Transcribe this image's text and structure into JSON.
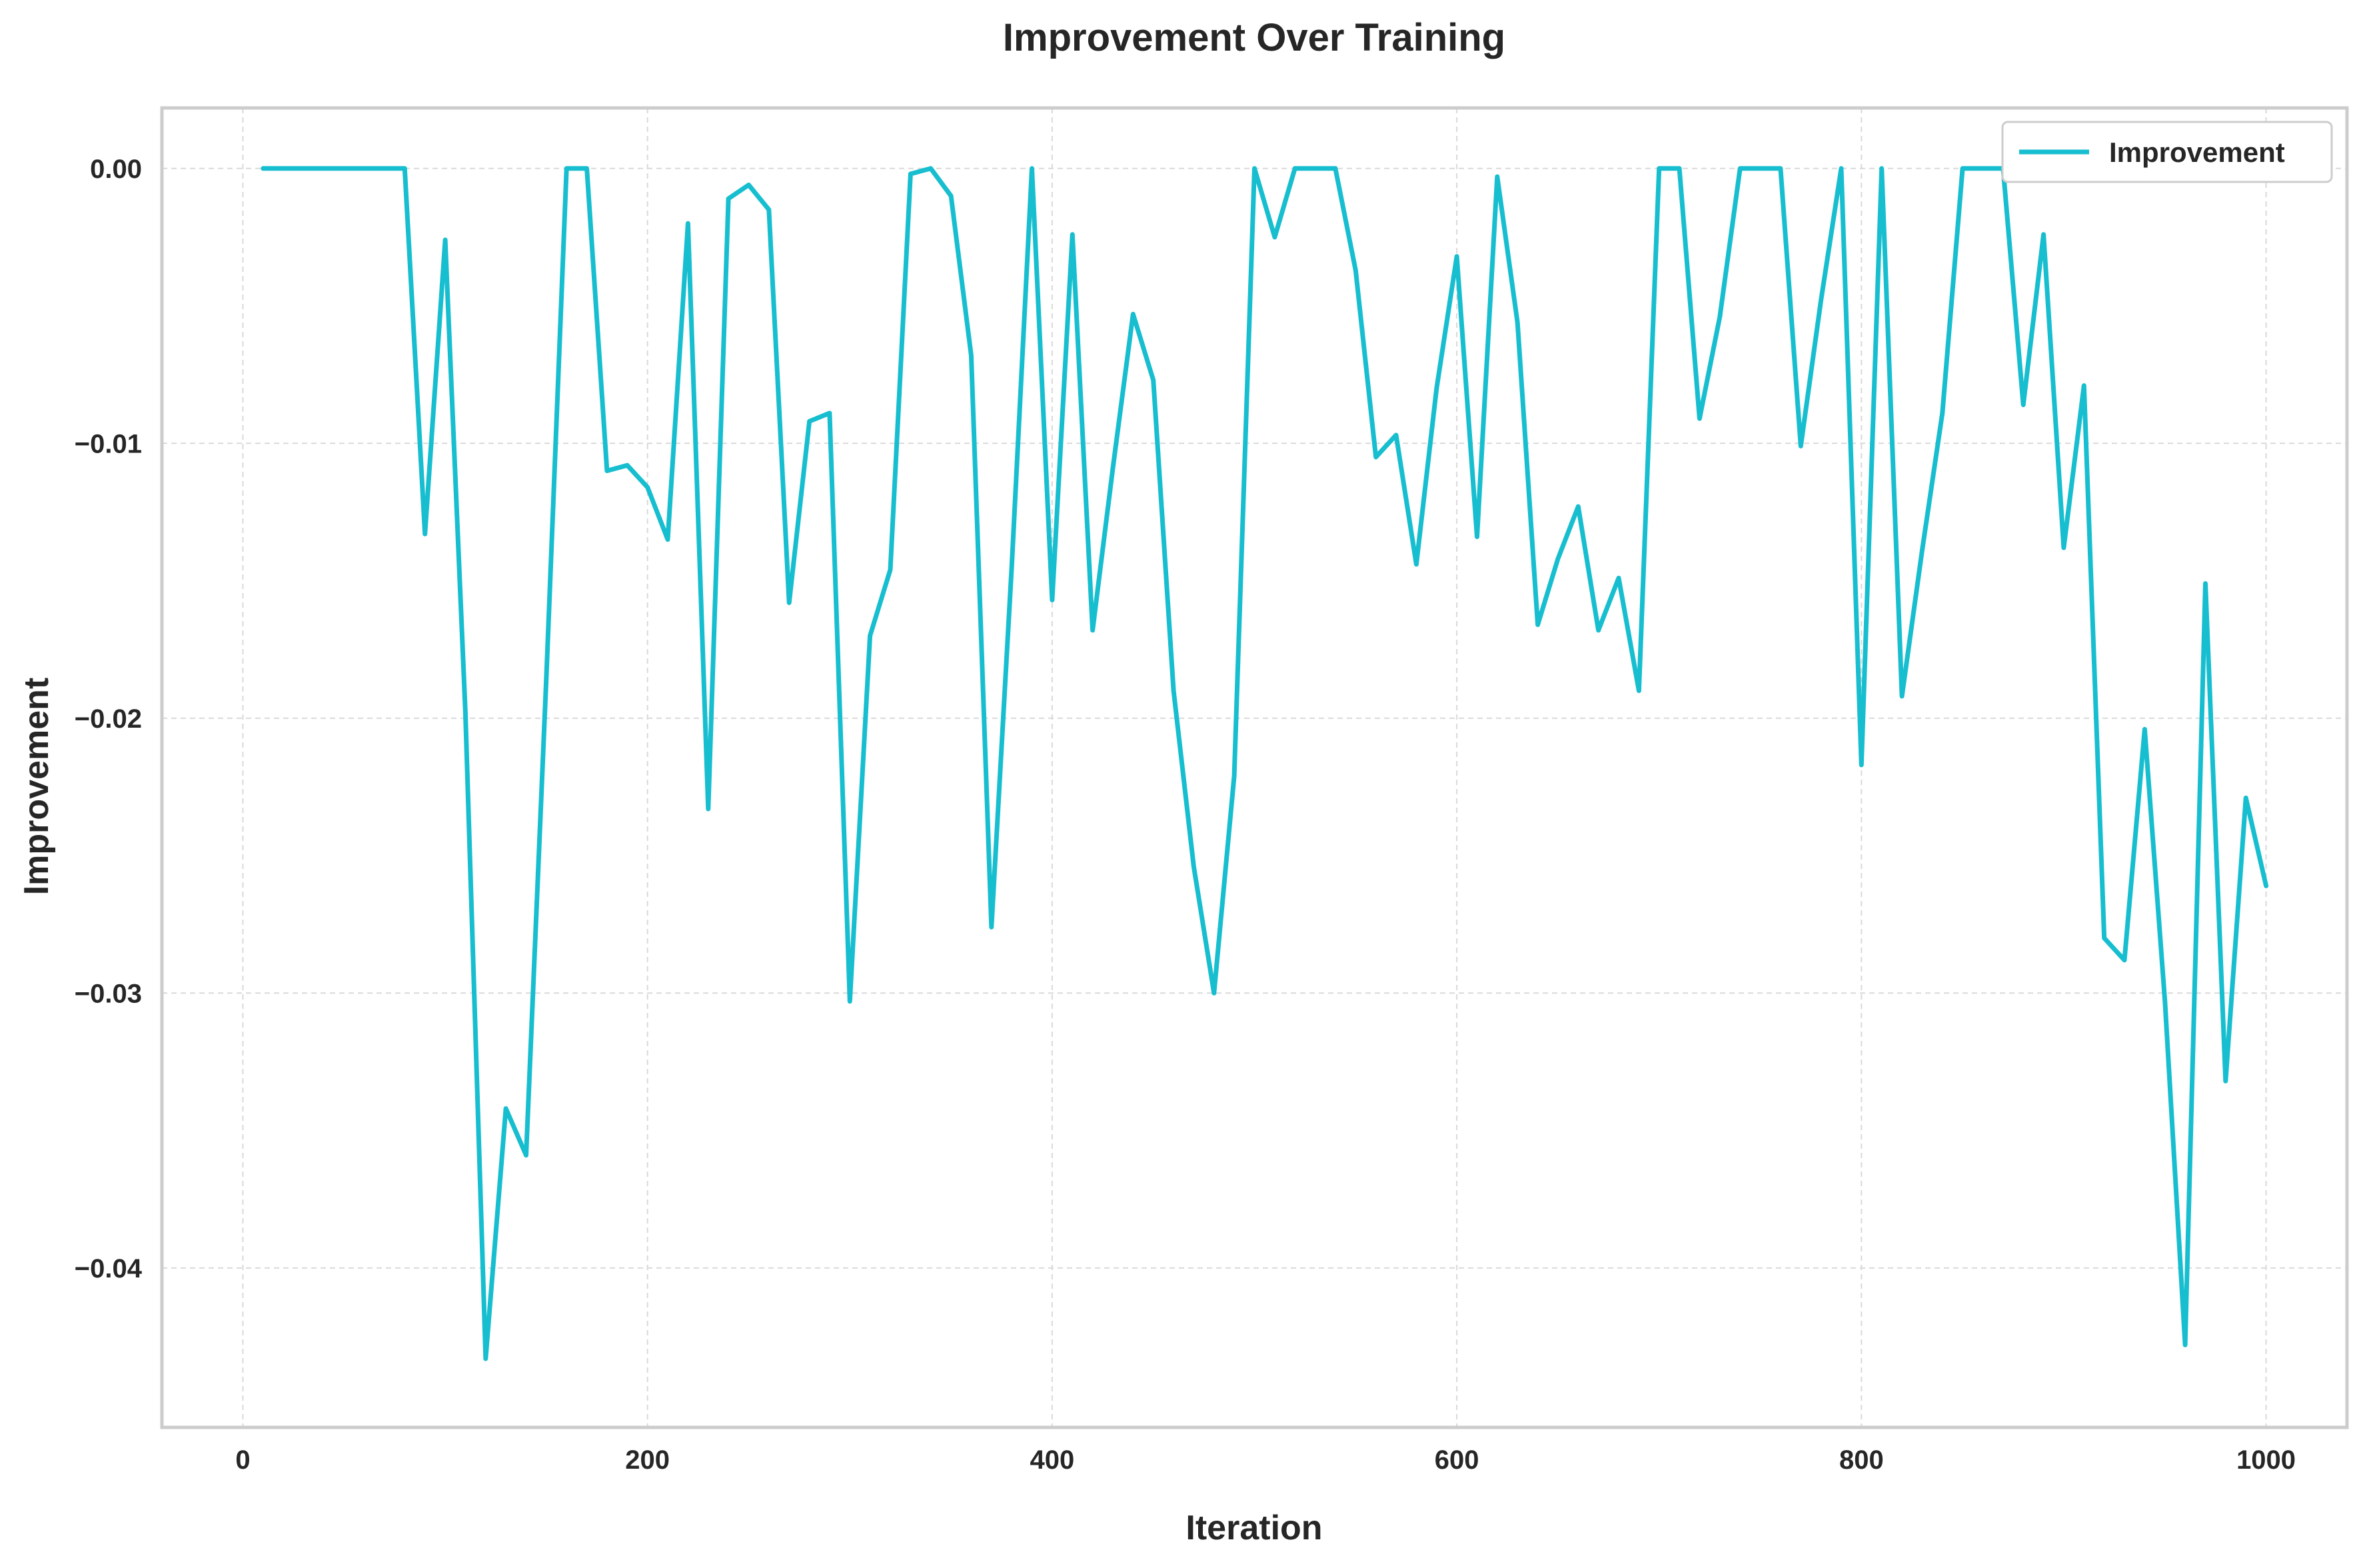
{
  "chart_data": {
    "type": "line",
    "title": "Improvement Over Training",
    "xlabel": "Iteration",
    "ylabel": "Improvement",
    "xlim": [
      -40,
      1040
    ],
    "ylim": [
      -0.0458,
      0.0022
    ],
    "xticks": [
      0,
      200,
      400,
      600,
      800,
      1000
    ],
    "xtick_labels": [
      "0",
      "200",
      "400",
      "600",
      "800",
      "1000"
    ],
    "yticks": [
      0,
      -0.01,
      -0.02,
      -0.03,
      -0.04
    ],
    "ytick_labels": [
      "0.00",
      "−0.01",
      "−0.02",
      "−0.03",
      "−0.04"
    ],
    "grid": true,
    "legend_position": "top-right",
    "series": [
      {
        "name": "Improvement",
        "color": "#17becf",
        "x": [
          10,
          20,
          30,
          40,
          50,
          60,
          70,
          80,
          90,
          100,
          110,
          120,
          130,
          140,
          150,
          160,
          170,
          180,
          190,
          200,
          210,
          220,
          230,
          240,
          250,
          260,
          270,
          280,
          290,
          300,
          310,
          320,
          330,
          340,
          350,
          360,
          370,
          380,
          390,
          400,
          410,
          420,
          430,
          440,
          450,
          460,
          470,
          480,
          490,
          500,
          510,
          520,
          530,
          540,
          550,
          560,
          570,
          580,
          590,
          600,
          610,
          620,
          630,
          640,
          650,
          660,
          670,
          680,
          690,
          700,
          710,
          720,
          730,
          740,
          750,
          760,
          770,
          780,
          790,
          800,
          810,
          820,
          830,
          840,
          850,
          860,
          870,
          880,
          890,
          900,
          910,
          920,
          930,
          940,
          950,
          960,
          970,
          980,
          990,
          1000
        ],
        "y": [
          0,
          0,
          0,
          0,
          0,
          0,
          0,
          0,
          -0.0133,
          -0.0026,
          -0.0198,
          -0.0433,
          -0.0342,
          -0.0359,
          -0.0185,
          0,
          0,
          -0.011,
          -0.0108,
          -0.0116,
          -0.0135,
          -0.002,
          -0.0233,
          -0.0011,
          -0.0006,
          -0.0015,
          -0.0158,
          -0.0092,
          -0.0089,
          -0.0303,
          -0.017,
          -0.0146,
          -0.0002,
          0,
          -0.001,
          -0.0068,
          -0.0276,
          -0.0145,
          0,
          -0.0157,
          -0.0024,
          -0.0168,
          -0.0109,
          -0.0053,
          -0.0077,
          -0.019,
          -0.0254,
          -0.03,
          -0.0221,
          0,
          -0.0025,
          0,
          0,
          0,
          -0.0037,
          -0.0105,
          -0.0097,
          -0.0144,
          -0.008,
          -0.0032,
          -0.0134,
          -0.0003,
          -0.0056,
          -0.0166,
          -0.0142,
          -0.0123,
          -0.0168,
          -0.0149,
          -0.019,
          0,
          0,
          -0.0091,
          -0.0054,
          0,
          0,
          0,
          -0.0101,
          -0.0048,
          0,
          -0.0217,
          0,
          -0.0192,
          -0.0139,
          -0.0089,
          0,
          0,
          0,
          -0.0086,
          -0.0024,
          -0.0138,
          -0.0079,
          -0.028,
          -0.0288,
          -0.0204,
          -0.0303,
          -0.0428,
          -0.0151,
          -0.0332,
          -0.0229,
          -0.0261
        ]
      }
    ]
  }
}
